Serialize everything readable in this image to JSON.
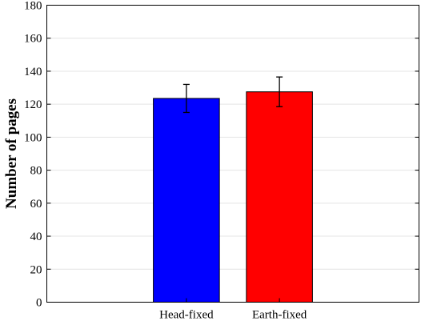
{
  "chart_data": {
    "type": "bar",
    "categories": [
      "Head-fixed",
      "Earth-fixed"
    ],
    "values": [
      123.5,
      127.5
    ],
    "errors": [
      8.5,
      9.0
    ],
    "colors": [
      "#0000ff",
      "#ff0000"
    ],
    "ylabel": "Number of pages",
    "xlabel": "",
    "title": "",
    "ylim": [
      0,
      180
    ],
    "yticks": [
      0,
      20,
      40,
      60,
      80,
      100,
      120,
      140,
      160,
      180
    ],
    "grid": true
  }
}
